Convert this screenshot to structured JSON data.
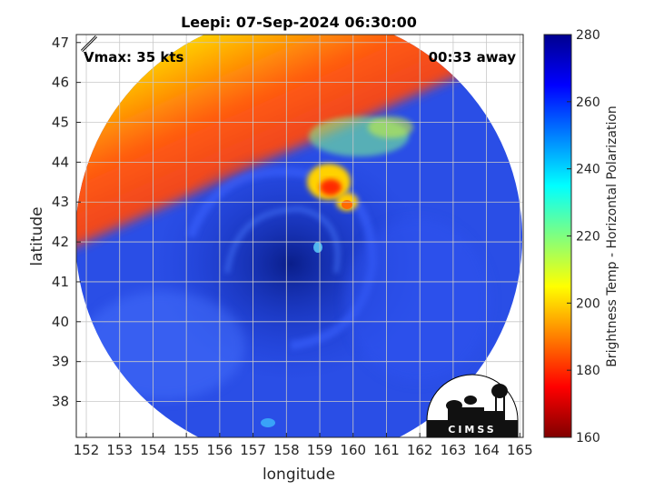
{
  "chart_data": {
    "type": "heatmap",
    "title": "Leepi: 07-Sep-2024 06:30:00",
    "xlabel": "longitude",
    "ylabel": "latitude",
    "xlim": [
      151.7,
      165.1
    ],
    "ylim": [
      37.1,
      47.2
    ],
    "xticks": [
      "152",
      "153",
      "154",
      "155",
      "156",
      "157",
      "158",
      "159",
      "160",
      "161",
      "162",
      "163",
      "164",
      "165"
    ],
    "yticks": [
      "38",
      "39",
      "40",
      "41",
      "42",
      "43",
      "44",
      "45",
      "46",
      "47"
    ],
    "grid": true,
    "storm_center": {
      "lon": 158.6,
      "lat": 41.7
    },
    "annotations": {
      "vmax": "Vmax: 35 kts",
      "time_offset": "00:33 away"
    },
    "colorbar": {
      "label": "Brightness Temp - Horizontal Polarization",
      "min": 160,
      "max": 280,
      "ticks": [
        "160",
        "180",
        "200",
        "220",
        "240",
        "260",
        "280"
      ],
      "colormap": "jet"
    },
    "logo_text": "CIMSS"
  }
}
